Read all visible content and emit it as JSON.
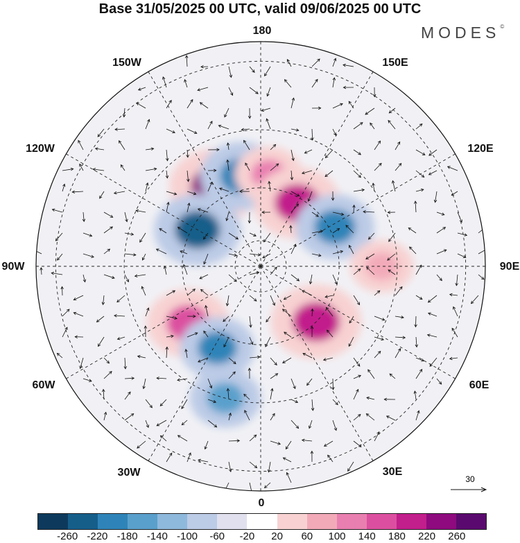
{
  "title": "Base 31/05/2025 00 UTC, valid 09/06/2025 00 UTC",
  "brand": "MODES",
  "brand_mark": "©",
  "longitude_labels": {
    "lon_180": "180",
    "lon_150e": "150E",
    "lon_120e": "120E",
    "lon_90e": "90E",
    "lon_60e": "60E",
    "lon_30e": "30E",
    "lon_0": "0",
    "lon_30w": "30W",
    "lon_60w": "60W",
    "lon_90w": "90W",
    "lon_120w": "120W",
    "lon_150w": "150W"
  },
  "reference_vector": {
    "value": "30"
  },
  "colorbar": {
    "colors": [
      "#0d3a5c",
      "#155e8a",
      "#2e84b8",
      "#5aa0cc",
      "#8fb9dc",
      "#bccbe6",
      "#e0e0ef",
      "#ffffff",
      "#f8d2d2",
      "#f2aab9",
      "#e97fb0",
      "#dc4fa0",
      "#c21e8c",
      "#8e0a7e",
      "#5a0a6e"
    ],
    "tick_labels": [
      "-260",
      "-220",
      "-180",
      "-140",
      "-100",
      "-60",
      "-20",
      "20",
      "60",
      "100",
      "140",
      "180",
      "220",
      "260"
    ]
  },
  "map_data": {
    "projection": "north-polar-stereographic",
    "anomaly_centers": [
      {
        "lon": -150,
        "lat": 55,
        "value": 240,
        "color": "#8e0a7e"
      },
      {
        "lon": -168,
        "lat": 55,
        "value": -200,
        "color": "#2e84b8"
      },
      {
        "lon": -120,
        "lat": 62,
        "value": -220,
        "color": "#155e8a"
      },
      {
        "lon": 175,
        "lat": 55,
        "value": 120,
        "color": "#e97fb0"
      },
      {
        "lon": 150,
        "lat": 62,
        "value": 220,
        "color": "#c21e8c"
      },
      {
        "lon": 118,
        "lat": 58,
        "value": -180,
        "color": "#2e84b8"
      },
      {
        "lon": 90,
        "lat": 45,
        "value": 100,
        "color": "#f2aab9"
      },
      {
        "lon": 45,
        "lat": 60,
        "value": 240,
        "color": "#c21e8c"
      },
      {
        "lon": -52,
        "lat": 55,
        "value": 200,
        "color": "#dc4fa0"
      },
      {
        "lon": -28,
        "lat": 55,
        "value": -160,
        "color": "#2e84b8"
      },
      {
        "lon": -15,
        "lat": 40,
        "value": -140,
        "color": "#5aa0cc"
      }
    ]
  }
}
